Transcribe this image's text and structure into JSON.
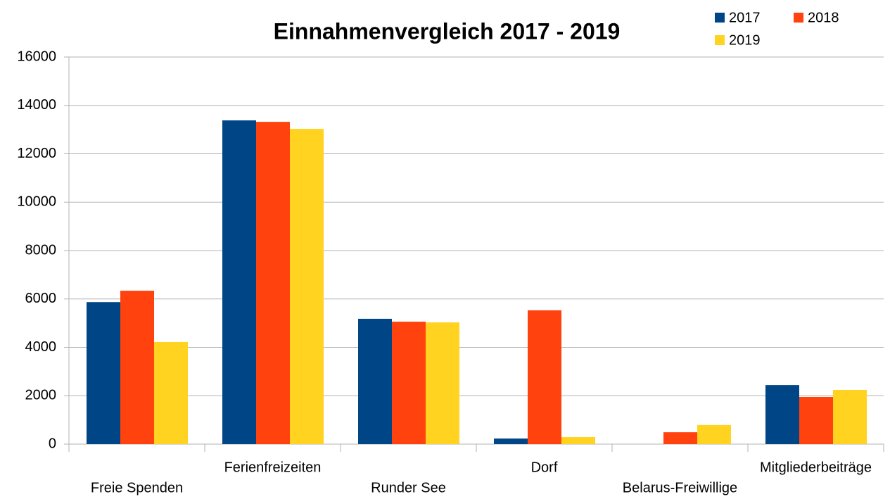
{
  "chart_data": {
    "type": "bar",
    "title": "Einnahmenvergleich 2017 - 2019",
    "categories": [
      "Freie Spenden",
      "Ferienfreizeiten",
      "Runder See",
      "Dorf",
      "Belarus-Freiwillige",
      "Mitgliederbeiträge"
    ],
    "series": [
      {
        "name": "2017",
        "color": "#004586",
        "values": [
          5870,
          13380,
          5180,
          230,
          null,
          2440
        ]
      },
      {
        "name": "2018",
        "color": "#ff420e",
        "values": [
          6340,
          13320,
          5060,
          5530,
          490,
          1950
        ]
      },
      {
        "name": "2019",
        "color": "#ffd320",
        "values": [
          4220,
          13030,
          5030,
          290,
          790,
          2240
        ]
      }
    ],
    "ylim": [
      0,
      16000
    ],
    "yticks": [
      0,
      2000,
      4000,
      6000,
      8000,
      10000,
      12000,
      14000,
      16000
    ],
    "grid": true,
    "legend": "top-right"
  }
}
